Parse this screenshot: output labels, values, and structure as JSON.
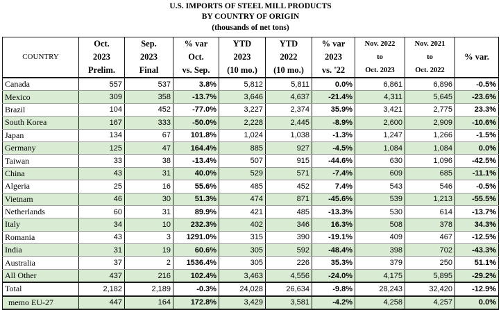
{
  "title": {
    "line1": "U.S. IMPORTS OF STEEL MILL PRODUCTS",
    "line2": "BY COUNTRY OF ORIGIN",
    "line3": "(thousands of net tons)"
  },
  "columns": [
    [
      "COUNTRY"
    ],
    [
      "Oct.",
      "2023",
      "Prelim."
    ],
    [
      "Sep.",
      "2023",
      "Final"
    ],
    [
      "% var",
      "Oct.",
      "vs. Sep."
    ],
    [
      "YTD",
      "2023",
      "(10 mo.)"
    ],
    [
      "YTD",
      "2022",
      "(10 mo.)"
    ],
    [
      "% var",
      "2023",
      "vs. '22"
    ],
    [
      "Nov. 2022",
      "to",
      "Oct. 2023"
    ],
    [
      "Nov. 2021",
      "to",
      "Oct. 2022"
    ],
    [
      "% var."
    ]
  ],
  "rows": [
    [
      "Canada",
      "557",
      "537",
      "3.8%",
      "5,812",
      "5,811",
      "0.0%",
      "6,861",
      "6,896",
      "-0.5%"
    ],
    [
      "Mexico",
      "309",
      "358",
      "-13.7%",
      "3,646",
      "4,637",
      "-21.4%",
      "4,311",
      "5,645",
      "-23.6%"
    ],
    [
      "Brazil",
      "104",
      "452",
      "-77.0%",
      "3,227",
      "2,374",
      "35.9%",
      "3,421",
      "2,775",
      "23.3%"
    ],
    [
      "South Korea",
      "167",
      "333",
      "-50.0%",
      "2,228",
      "2,445",
      "-8.9%",
      "2,600",
      "2,909",
      "-10.6%"
    ],
    [
      "Japan",
      "134",
      "67",
      "101.8%",
      "1,024",
      "1,038",
      "-1.3%",
      "1,247",
      "1,266",
      "-1.5%"
    ],
    [
      "Germany",
      "125",
      "47",
      "164.4%",
      "885",
      "927",
      "-4.5%",
      "1,084",
      "1,084",
      "0.0%"
    ],
    [
      "Taiwan",
      "33",
      "38",
      "-13.4%",
      "507",
      "915",
      "-44.6%",
      "630",
      "1,096",
      "-42.5%"
    ],
    [
      "China",
      "43",
      "31",
      "40.0%",
      "529",
      "571",
      "-7.4%",
      "609",
      "685",
      "-11.1%"
    ],
    [
      "Algeria",
      "25",
      "16",
      "55.6%",
      "485",
      "452",
      "7.4%",
      "543",
      "546",
      "-0.5%"
    ],
    [
      "Vietnam",
      "46",
      "30",
      "51.3%",
      "474",
      "871",
      "-45.6%",
      "539",
      "1,213",
      "-55.5%"
    ],
    [
      "Netherlands",
      "60",
      "31",
      "89.9%",
      "421",
      "485",
      "-13.3%",
      "530",
      "614",
      "-13.7%"
    ],
    [
      "Italy",
      "34",
      "10",
      "232.3%",
      "402",
      "346",
      "16.3%",
      "508",
      "378",
      "34.3%"
    ],
    [
      "Romania",
      "43",
      "3",
      "1291.0%",
      "315",
      "390",
      "-19.1%",
      "409",
      "467",
      "-12.5%"
    ],
    [
      "India",
      "31",
      "19",
      "60.6%",
      "305",
      "592",
      "-48.4%",
      "398",
      "702",
      "-43.3%"
    ],
    [
      "Australia",
      "37",
      "2",
      "1536.4%",
      "305",
      "226",
      "35.3%",
      "379",
      "250",
      "51.1%"
    ],
    [
      "All Other",
      "437",
      "216",
      "102.4%",
      "3,463",
      "4,556",
      "-24.0%",
      "4,175",
      "5,895",
      "-29.2%"
    ]
  ],
  "total": [
    "Total",
    "2,182",
    "2,189",
    "-0.3%",
    "24,028",
    "26,634",
    "-9.8%",
    "28,243",
    "32,420",
    "-12.9%"
  ],
  "memo": [
    "memo EU-27",
    "447",
    "164",
    "172.8%",
    "3,429",
    "3,581",
    "-4.2%",
    "4,258",
    "4,257",
    "0.0%"
  ]
}
